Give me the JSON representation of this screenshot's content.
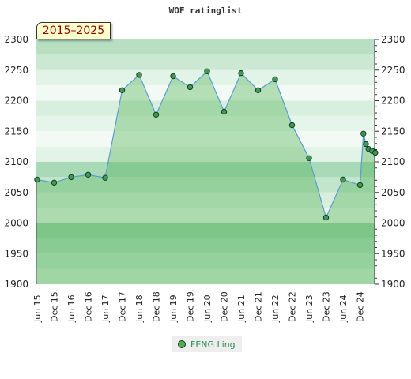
{
  "chart_data": {
    "type": "area",
    "title": "WOF ratinglist",
    "period_label": "2015–2025",
    "ylim": [
      1900,
      2300
    ],
    "y_ticks": [
      1900,
      1950,
      2000,
      2050,
      2100,
      2150,
      2200,
      2250,
      2300
    ],
    "x_tick_labels": [
      "Jun 15",
      "Dec 15",
      "Jun 16",
      "Dec 16",
      "Jun 17",
      "Dec 17",
      "Jun 18",
      "Dec 18",
      "Jun 19",
      "Dec 19",
      "Jun 20",
      "Dec 20",
      "Jun 21",
      "Dec 21",
      "Jun 22",
      "Dec 22",
      "Jun 23",
      "Dec 23",
      "Jun 24",
      "Dec 24"
    ],
    "grid": true,
    "legend_position": "bottom-center",
    "series": [
      {
        "name": "FENG Ling",
        "color": "#4caf50",
        "line_color": "#5b9bd5",
        "points": [
          {
            "x": 0,
            "y": 2071
          },
          {
            "x": 1,
            "y": 2066
          },
          {
            "x": 2,
            "y": 2075
          },
          {
            "x": 3,
            "y": 2079
          },
          {
            "x": 4,
            "y": 2074
          },
          {
            "x": 5,
            "y": 2217
          },
          {
            "x": 6,
            "y": 2242
          },
          {
            "x": 7,
            "y": 2177
          },
          {
            "x": 8,
            "y": 2240
          },
          {
            "x": 9,
            "y": 2222
          },
          {
            "x": 10,
            "y": 2248
          },
          {
            "x": 11,
            "y": 2182
          },
          {
            "x": 12,
            "y": 2245
          },
          {
            "x": 13,
            "y": 2217
          },
          {
            "x": 14,
            "y": 2235
          },
          {
            "x": 15,
            "y": 2160
          },
          {
            "x": 16,
            "y": 2106
          },
          {
            "x": 17,
            "y": 2009
          },
          {
            "x": 18,
            "y": 2071
          },
          {
            "x": 19,
            "y": 2062
          },
          {
            "x": 19.2,
            "y": 2146
          },
          {
            "x": 19.35,
            "y": 2129
          },
          {
            "x": 19.5,
            "y": 2121
          },
          {
            "x": 19.7,
            "y": 2118
          },
          {
            "x": 19.9,
            "y": 2115
          }
        ]
      }
    ]
  }
}
